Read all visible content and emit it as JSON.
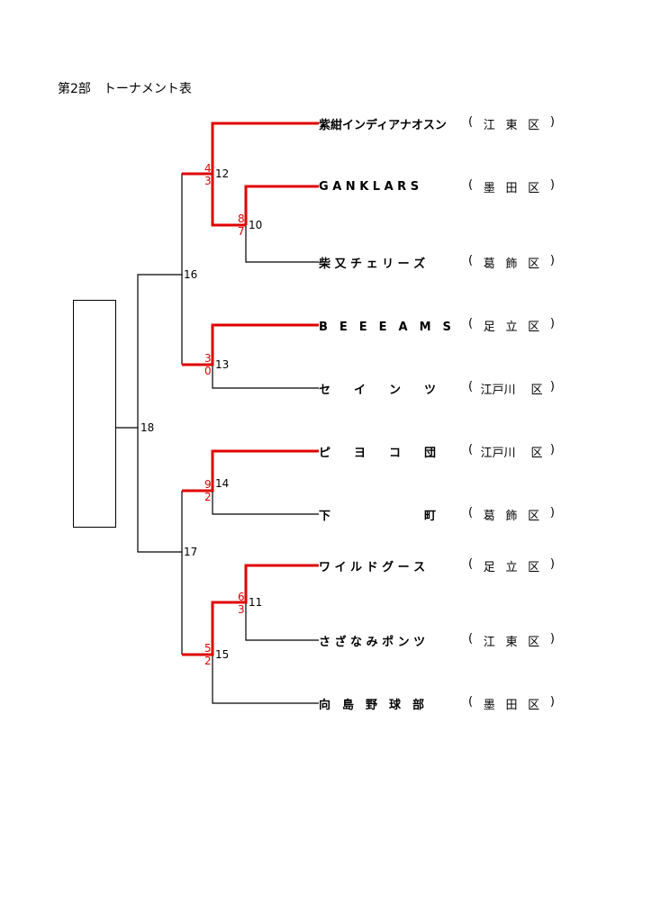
{
  "title": "第2部　トーナメント表",
  "teams": [
    {
      "name": "紫紺インディアナオスン",
      "region": [
        "(",
        "江",
        "東",
        "区",
        ")"
      ]
    },
    {
      "name": "G A N K L A R S",
      "region": [
        "(",
        "墨",
        "田",
        "区",
        ")"
      ]
    },
    {
      "name": "柴 又 チ ェ リ ー ズ",
      "region": [
        "(",
        "葛",
        "飾",
        "区",
        ")"
      ]
    },
    {
      "name": "B　E　E　E　A　M　S",
      "region": [
        "(",
        "足",
        "立",
        "区",
        ")"
      ]
    },
    {
      "name": "セ　　イ　　ン　　ツ",
      "region": [
        "(",
        "江戸川",
        "",
        "区",
        ")"
      ]
    },
    {
      "name": "ピ　　ヨ　　コ　　団",
      "region": [
        "(",
        "江戸川",
        "",
        "区",
        ")"
      ]
    },
    {
      "name": "下　　　　　　　　町",
      "region": [
        "(",
        "葛",
        "飾",
        "区",
        ")"
      ]
    },
    {
      "name": "ワ イ ル ド グ ー ス",
      "region": [
        "(",
        "足",
        "立",
        "区",
        ")"
      ]
    },
    {
      "name": "さ ざ な み ポ ン ツ",
      "region": [
        "(",
        "江",
        "東",
        "区",
        ")"
      ]
    },
    {
      "name": "向　島　野　球　部",
      "region": [
        "(",
        "墨",
        "田",
        "区",
        ")"
      ]
    }
  ],
  "matches": [
    {
      "no": "10",
      "score_top": "8",
      "score_bottom": "7"
    },
    {
      "no": "11",
      "score_top": "6",
      "score_bottom": "3"
    },
    {
      "no": "12",
      "score_top": "4",
      "score_bottom": "3"
    },
    {
      "no": "13",
      "score_top": "3",
      "score_bottom": "0"
    },
    {
      "no": "14",
      "score_top": "9",
      "score_bottom": "2"
    },
    {
      "no": "15",
      "score_top": "5",
      "score_bottom": "2"
    },
    {
      "no": "16"
    },
    {
      "no": "17"
    },
    {
      "no": "18"
    }
  ],
  "colors": {
    "winner_line": "#e00000",
    "line": "#000000"
  }
}
